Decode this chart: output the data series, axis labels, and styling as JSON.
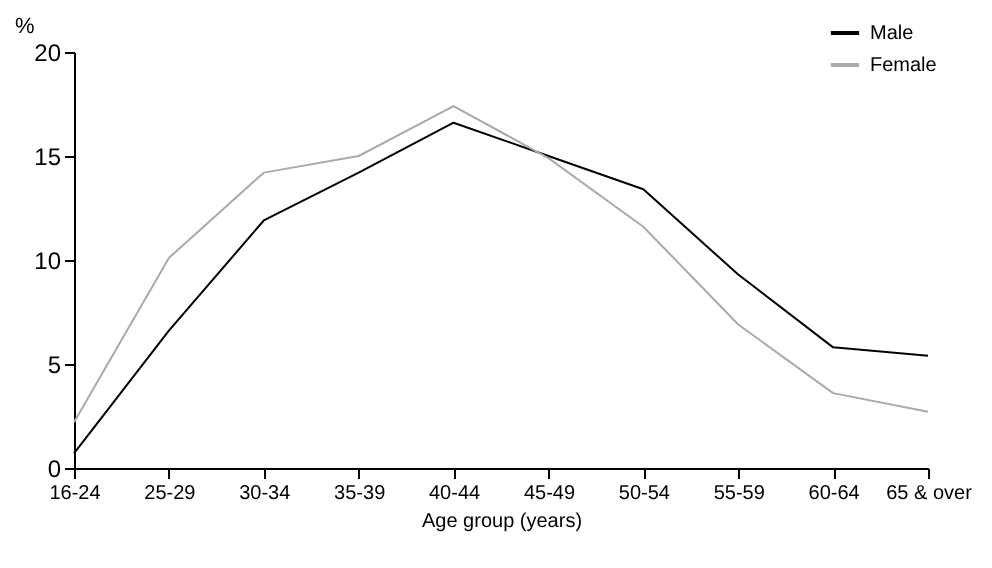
{
  "chart_data": {
    "type": "line",
    "xlabel": "Age group (years)",
    "ylabel": "%",
    "categories": [
      "16-24",
      "25-29",
      "30-34",
      "35-39",
      "40-44",
      "45-49",
      "50-54",
      "55-59",
      "60-64",
      "65 & over"
    ],
    "series": [
      {
        "name": "Male",
        "color": "#000000",
        "values": [
          0.7,
          6.6,
          11.9,
          14.2,
          16.6,
          15.0,
          13.4,
          9.3,
          5.8,
          5.4
        ]
      },
      {
        "name": "Female",
        "color": "#aaaaaa",
        "values": [
          2.2,
          10.1,
          14.2,
          15.0,
          17.4,
          14.9,
          11.6,
          6.9,
          3.6,
          2.7
        ]
      }
    ],
    "ylim": [
      0,
      20
    ],
    "yticks": [
      0,
      5,
      10,
      15,
      20
    ],
    "grid": false,
    "legend": "top right"
  }
}
